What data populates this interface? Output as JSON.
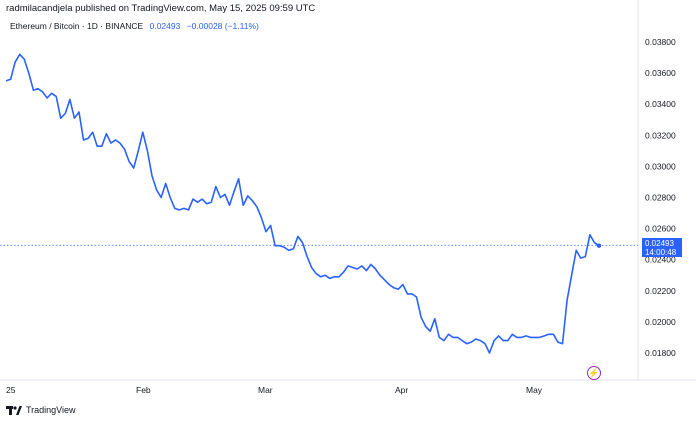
{
  "header": {
    "published_text": "radmilacandjela published on TradingView.com, May 15, 2025 09:59 UTC"
  },
  "symbol": {
    "name": "Ethereum / Bitcoin · 1D · BINANCE",
    "price": "0.02493",
    "change": "−0.00028 (−1.11%)"
  },
  "price_tag": {
    "price": "0.02493",
    "countdown": "14:00:48"
  },
  "footer": {
    "brand": "TradingView"
  },
  "colors": {
    "line": "#2962ff",
    "accent": "#2962ff",
    "lightning": "#9c27b0"
  },
  "icons": [
    "tradingview-logo-icon",
    "lightning-icon"
  ],
  "chart_data": {
    "type": "line",
    "title": "",
    "ylim": [
      0.0172,
      0.0396
    ],
    "y_ticks": [
      "0.03800",
      "0.03600",
      "0.03400",
      "0.03200",
      "0.03000",
      "0.02800",
      "0.02600",
      "0.02400",
      "0.02200",
      "0.02000",
      "0.01800"
    ],
    "x_ticks": [
      "25",
      "Feb",
      "Mar",
      "Apr",
      "May"
    ],
    "last_value": 0.02493,
    "series": [
      {
        "values": [
          0.0355,
          0.0356,
          0.0367,
          0.0372,
          0.0369,
          0.036,
          0.0349,
          0.035,
          0.0348,
          0.0344,
          0.0347,
          0.0345,
          0.0331,
          0.0334,
          0.0343,
          0.0331,
          0.0335,
          0.0317,
          0.0318,
          0.0322,
          0.0313,
          0.0313,
          0.0321,
          0.0315,
          0.0317,
          0.0315,
          0.0311,
          0.0303,
          0.0299,
          0.031,
          0.0322,
          0.031,
          0.0294,
          0.0285,
          0.028,
          0.0289,
          0.028,
          0.0273,
          0.0272,
          0.0273,
          0.0272,
          0.0279,
          0.0277,
          0.0279,
          0.0276,
          0.0277,
          0.0287,
          0.028,
          0.0282,
          0.0275,
          0.0284,
          0.0292,
          0.0275,
          0.0281,
          0.0278,
          0.0274,
          0.0267,
          0.0258,
          0.0262,
          0.0249,
          0.0249,
          0.0248,
          0.0246,
          0.0247,
          0.0255,
          0.0251,
          0.0242,
          0.0235,
          0.0231,
          0.0229,
          0.023,
          0.0228,
          0.0229,
          0.0229,
          0.0232,
          0.0236,
          0.0235,
          0.0234,
          0.0236,
          0.0233,
          0.0237,
          0.0234,
          0.023,
          0.0227,
          0.0224,
          0.0222,
          0.0221,
          0.0224,
          0.0218,
          0.0218,
          0.0216,
          0.0203,
          0.0197,
          0.0194,
          0.0202,
          0.019,
          0.0188,
          0.0192,
          0.019,
          0.019,
          0.0188,
          0.0186,
          0.0187,
          0.0189,
          0.0188,
          0.0186,
          0.018,
          0.0188,
          0.0191,
          0.0188,
          0.0188,
          0.0192,
          0.019,
          0.019,
          0.0191,
          0.019,
          0.019,
          0.019,
          0.0191,
          0.0192,
          0.0192,
          0.0187,
          0.0186,
          0.0214,
          0.023,
          0.0246,
          0.0241,
          0.0242,
          0.0256,
          0.0251,
          0.0249
        ]
      }
    ],
    "grid": false
  }
}
